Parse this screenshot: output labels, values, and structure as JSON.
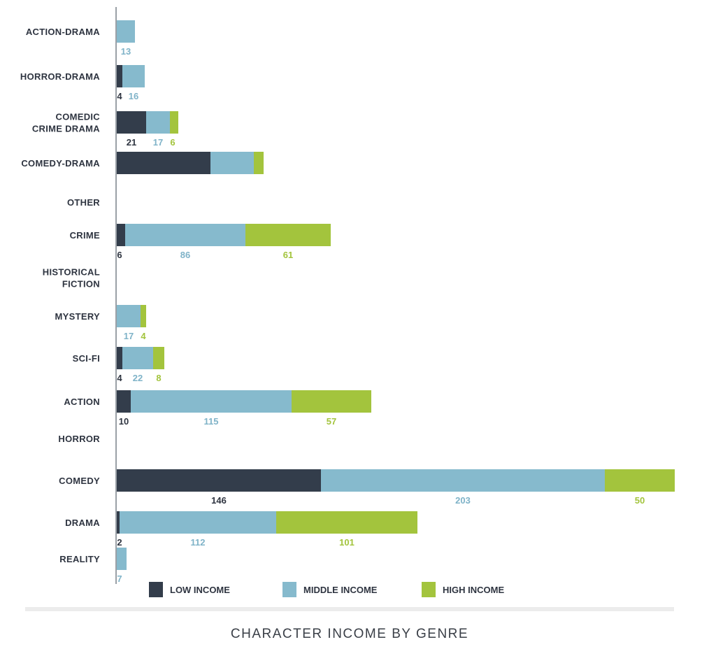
{
  "chart_data": {
    "type": "bar",
    "orientation": "horizontal",
    "stacked": true,
    "title": "CHARACTER INCOME BY GENRE",
    "xlabel": "",
    "ylabel": "",
    "xlim": [
      0,
      399
    ],
    "grid": false,
    "legend_position": "bottom",
    "categories": [
      "ACTION-DRAMA",
      "HORROR-DRAMA",
      "COMEDIC CRIME DRAMA",
      "COMEDY-DRAMA",
      "OTHER",
      "CRIME",
      "HISTORICAL FICTION",
      "MYSTERY",
      "SCI-FI",
      "ACTION",
      "HORROR",
      "COMEDY",
      "DRAMA",
      "REALITY"
    ],
    "series": [
      {
        "name": "LOW INCOME",
        "color": "#333d4b",
        "values": [
          0,
          4,
          21,
          67,
          0,
          6,
          0,
          0,
          4,
          10,
          0,
          146,
          2,
          0
        ],
        "labels": [
          "",
          "4",
          "21",
          "",
          "",
          "6",
          "",
          "",
          "4",
          "10",
          "",
          "146",
          "2",
          ""
        ]
      },
      {
        "name": "MIDDLE INCOME",
        "color": "#86bacd",
        "values": [
          13,
          16,
          17,
          31,
          0,
          86,
          0,
          17,
          22,
          115,
          0,
          203,
          112,
          7
        ],
        "labels": [
          "13",
          "16",
          "17",
          "",
          "",
          "86",
          "",
          "17",
          "22",
          "115",
          "",
          "203",
          "112",
          "7"
        ]
      },
      {
        "name": "HIGH INCOME",
        "color": "#a3c43d",
        "values": [
          0,
          0,
          6,
          7,
          0,
          61,
          0,
          4,
          8,
          57,
          0,
          50,
          101,
          0
        ],
        "labels": [
          "",
          "",
          "6",
          "",
          "",
          "61",
          "",
          "4",
          "8",
          "57",
          "",
          "50",
          "101",
          ""
        ]
      }
    ]
  }
}
